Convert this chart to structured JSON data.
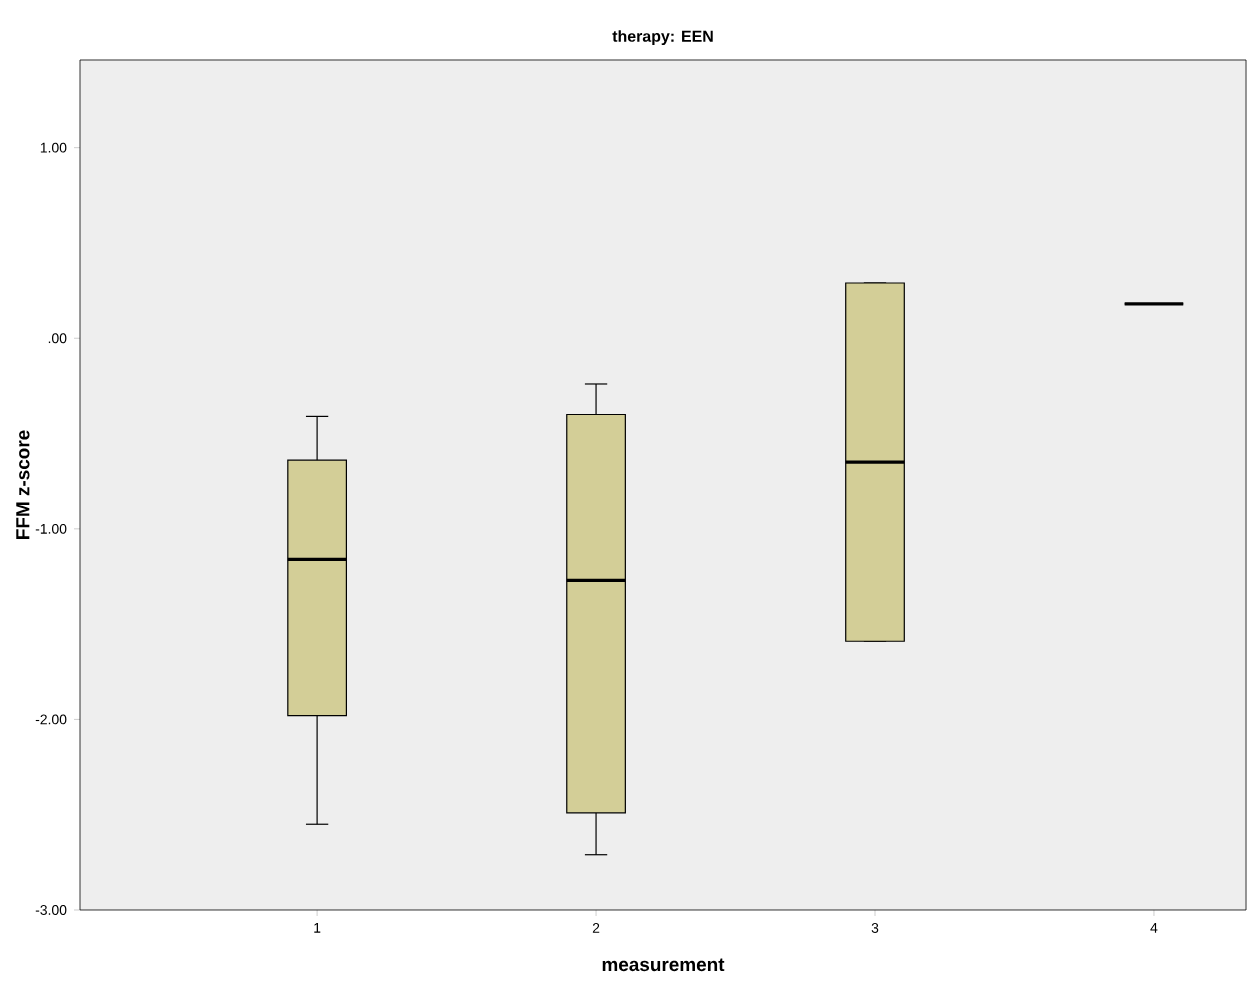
{
  "chart_data": {
    "type": "box",
    "title": "therapy: EEN",
    "xlabel": "measurement",
    "ylabel": "FFM z-score",
    "categories": [
      "1",
      "2",
      "3",
      "4"
    ],
    "colors": [
      "#d3ce97",
      "#d3ce97",
      "#d3ce97",
      "#000000"
    ],
    "boxes": [
      {
        "low": -2.55,
        "q1": -1.98,
        "median": -1.16,
        "q3": -0.64,
        "high": -0.41
      },
      {
        "low": -2.71,
        "q1": -2.49,
        "median": -1.27,
        "q3": -0.4,
        "high": -0.24
      },
      {
        "low": -1.59,
        "q1": -1.59,
        "median": -0.65,
        "q3": 0.29,
        "high": 0.29
      },
      {
        "low": 0.18,
        "q1": 0.18,
        "median": 0.18,
        "q3": 0.18,
        "high": 0.18
      }
    ],
    "ylim": [
      -3,
      1.46
    ],
    "yticks": [
      {
        "value": -3,
        "label": "-3.00"
      },
      {
        "value": -2,
        "label": "-2.00"
      },
      {
        "value": -1,
        "label": "-1.00"
      },
      {
        "value": 0,
        "label": ".00"
      },
      {
        "value": 1,
        "label": "1.00"
      }
    ],
    "grid": false
  }
}
